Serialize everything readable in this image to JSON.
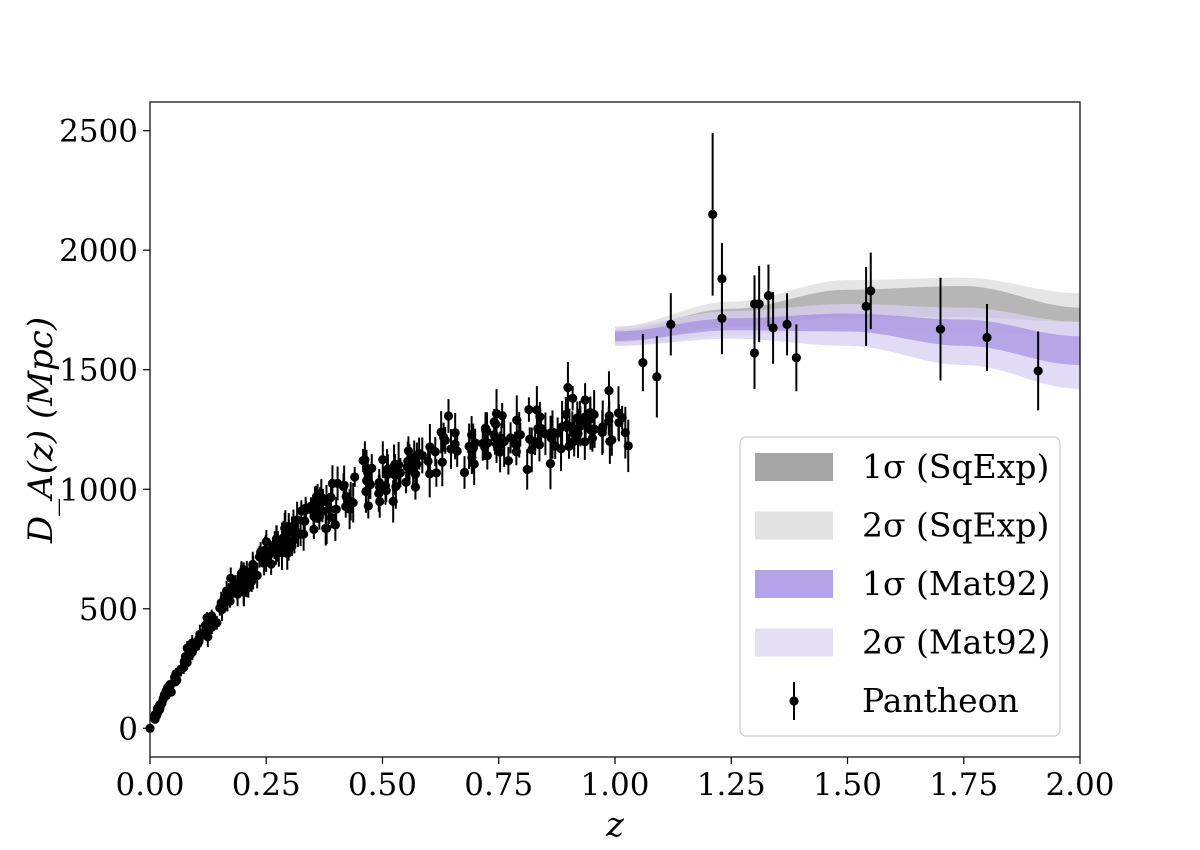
{
  "chart_data": {
    "type": "scatter",
    "title": "",
    "xlabel": "z",
    "ylabel": "D_A(z) (Mpc)",
    "xlim": [
      0.0,
      2.0
    ],
    "ylim": [
      -120,
      2620
    ],
    "xticks": [
      "0.00",
      "0.25",
      "0.50",
      "0.75",
      "1.00",
      "1.25",
      "1.50",
      "1.75",
      "2.00"
    ],
    "yticks": [
      "0",
      "500",
      "1000",
      "1500",
      "2000",
      "2500"
    ],
    "legend": {
      "position": "lower-right",
      "entries": [
        {
          "label": "1σ (SqExp)",
          "color": "#a6a6a6"
        },
        {
          "label": "2σ (SqExp)",
          "color": "#e2e2e2"
        },
        {
          "label": "1σ (Mat92)",
          "color": "#b4a2e8"
        },
        {
          "label": "2σ (Mat92)",
          "color": "#e6e0f6"
        },
        {
          "label": "Pantheon",
          "color": "#000000"
        }
      ]
    },
    "bands": [
      {
        "name": "2σ (SqExp)",
        "color": "#e2e2e2",
        "opacity": 0.9,
        "z": [
          1.0,
          1.25,
          1.5,
          1.75,
          2.0
        ],
        "lower": [
          1600,
          1645,
          1665,
          1660,
          1640
        ],
        "upper": [
          1680,
          1785,
          1875,
          1885,
          1820
        ]
      },
      {
        "name": "1σ (SqExp)",
        "color": "#8f8f8f",
        "opacity": 0.55,
        "z": [
          1.0,
          1.25,
          1.5,
          1.75,
          2.0
        ],
        "lower": [
          1615,
          1680,
          1720,
          1720,
          1700
        ],
        "upper": [
          1665,
          1755,
          1835,
          1850,
          1760
        ]
      },
      {
        "name": "2σ (Mat92)",
        "color": "#d8cff3",
        "opacity": 0.75,
        "z": [
          1.0,
          1.25,
          1.5,
          1.75,
          2.0
        ],
        "lower": [
          1600,
          1630,
          1600,
          1520,
          1420
        ],
        "upper": [
          1680,
          1745,
          1775,
          1760,
          1700
        ]
      },
      {
        "name": "1σ (Mat92)",
        "color": "#9b82dd",
        "opacity": 0.6,
        "z": [
          1.0,
          1.25,
          1.5,
          1.75,
          2.0
        ],
        "lower": [
          1620,
          1665,
          1660,
          1600,
          1520
        ],
        "upper": [
          1660,
          1715,
          1735,
          1710,
          1640
        ]
      }
    ],
    "pantheon_trend": {
      "description": "dense low-z cluster approximated by D_A ≈ 4283·z/(1+z)^1.75 plus scatter",
      "z_range": [
        0.01,
        1.03
      ],
      "n_points": 330
    },
    "pantheon_high_z": [
      {
        "z": 1.06,
        "da": 1530,
        "err": 120
      },
      {
        "z": 1.09,
        "da": 1470,
        "err": 170
      },
      {
        "z": 1.12,
        "da": 1690,
        "err": 130
      },
      {
        "z": 1.21,
        "da": 2150,
        "err": 340
      },
      {
        "z": 1.23,
        "da": 1880,
        "err": 150
      },
      {
        "z": 1.23,
        "da": 1715,
        "err": 150
      },
      {
        "z": 1.3,
        "da": 1775,
        "err": 120
      },
      {
        "z": 1.3,
        "da": 1570,
        "err": 150
      },
      {
        "z": 1.31,
        "da": 1775,
        "err": 160
      },
      {
        "z": 1.33,
        "da": 1810,
        "err": 130
      },
      {
        "z": 1.34,
        "da": 1675,
        "err": 150
      },
      {
        "z": 1.37,
        "da": 1690,
        "err": 130
      },
      {
        "z": 1.39,
        "da": 1550,
        "err": 140
      },
      {
        "z": 1.54,
        "da": 1765,
        "err": 165
      },
      {
        "z": 1.55,
        "da": 1830,
        "err": 160
      },
      {
        "z": 1.7,
        "da": 1670,
        "err": 215
      },
      {
        "z": 1.8,
        "da": 1635,
        "err": 140
      },
      {
        "z": 1.91,
        "da": 1495,
        "err": 165
      }
    ]
  }
}
